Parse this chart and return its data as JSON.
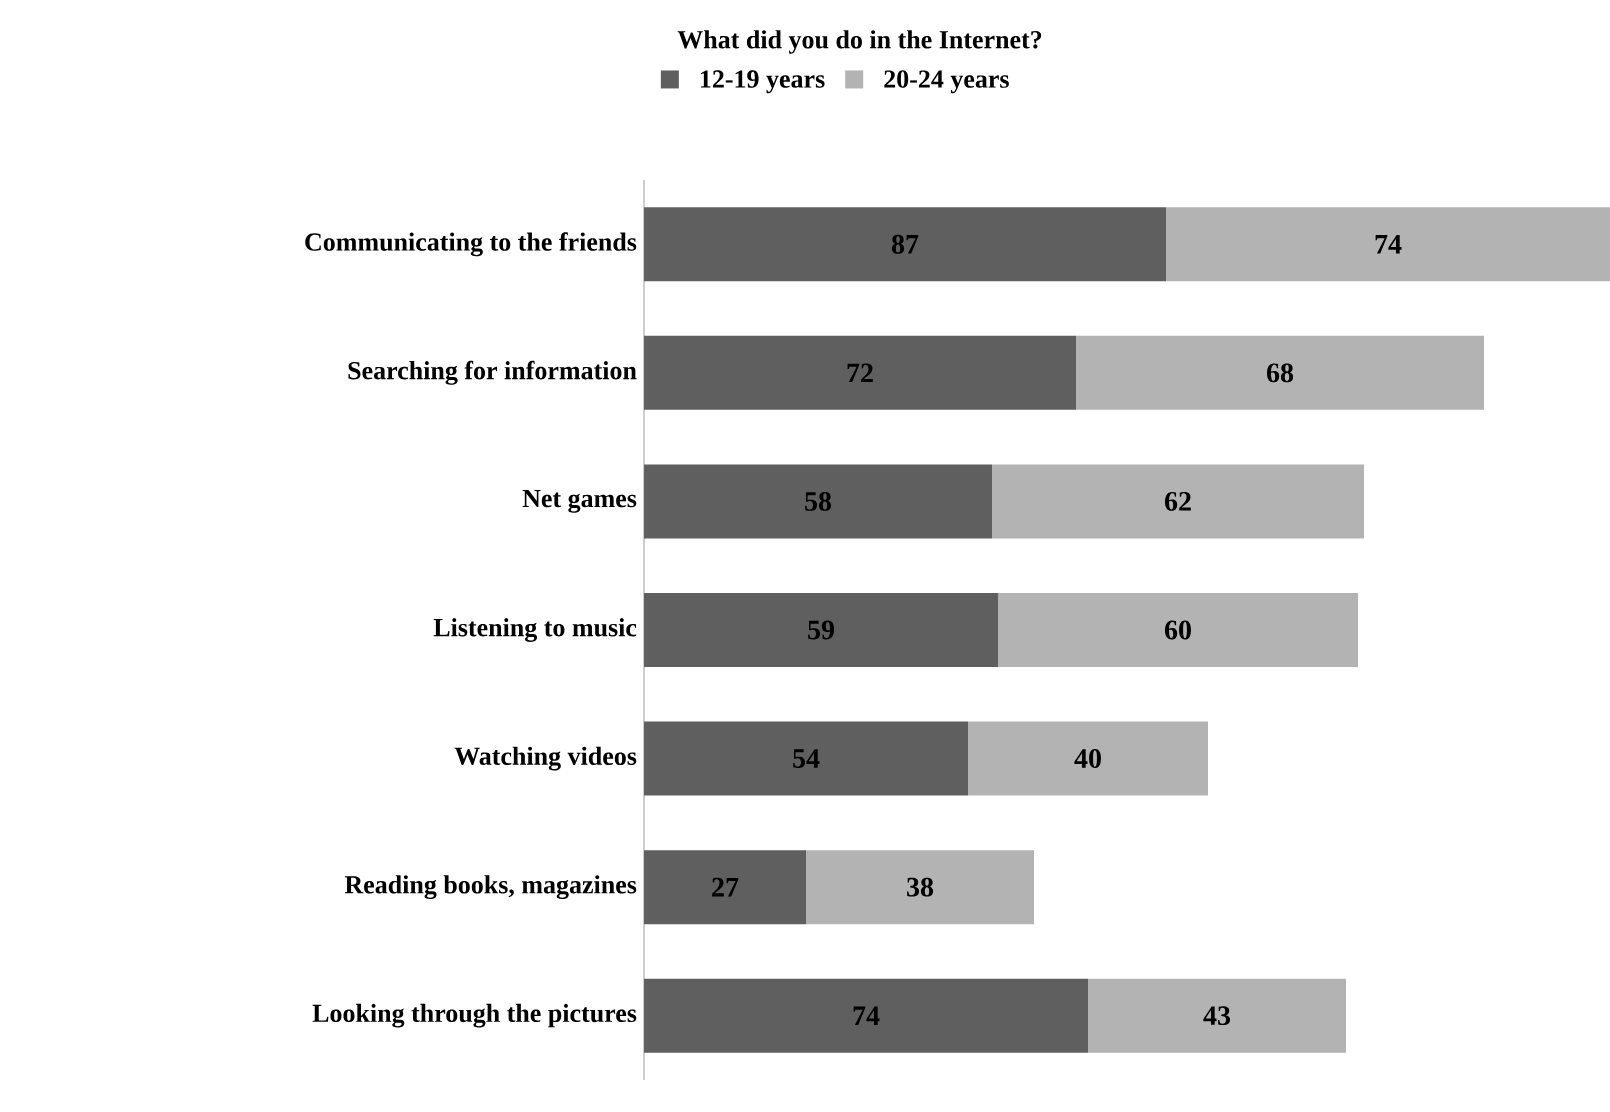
{
  "chart_data": {
    "type": "bar",
    "orientation": "horizontal",
    "stacked": true,
    "title": "What did you do in the Internet?",
    "categories": [
      "Communicating to the friends",
      "Searching for information",
      "Net games",
      "Listening to music",
      "Watching videos",
      "Reading books, magazines",
      "Looking through the pictures"
    ],
    "series": [
      {
        "name": "12-19 years",
        "color": "#5f5f5f",
        "values": [
          87,
          72,
          58,
          59,
          54,
          27,
          74
        ]
      },
      {
        "name": "20-24 years",
        "color": "#b3b3b3",
        "values": [
          74,
          68,
          62,
          60,
          40,
          38,
          43
        ]
      }
    ],
    "data_labels": true,
    "legend": "top"
  }
}
